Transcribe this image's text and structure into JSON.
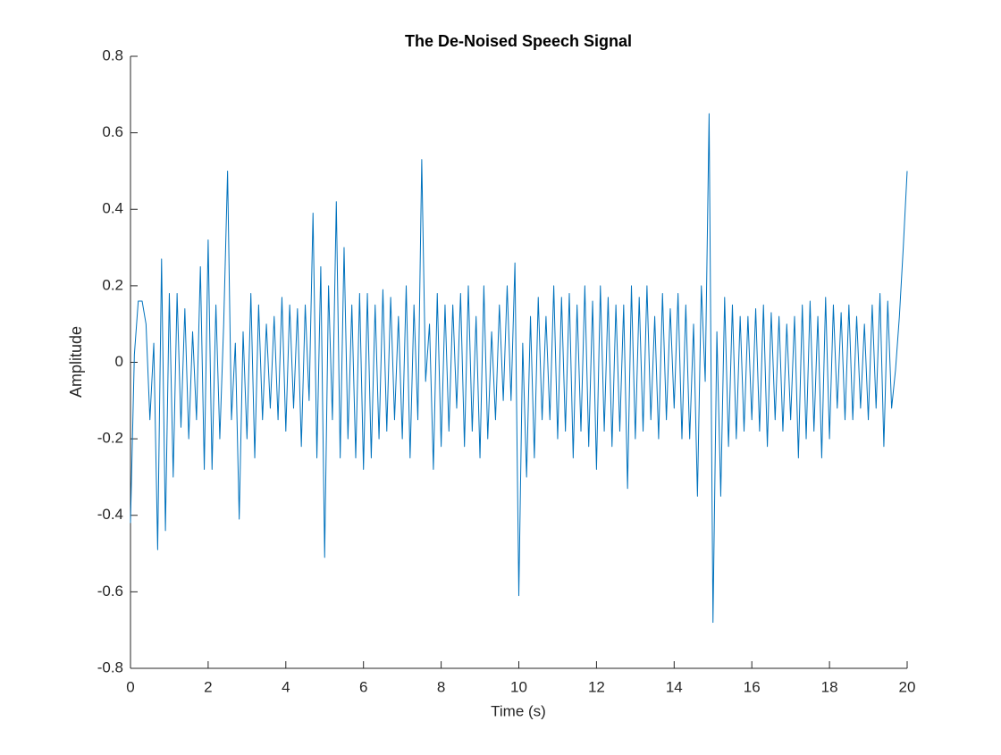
{
  "chart_data": {
    "type": "line",
    "title": "The De-Noised Speech Signal",
    "xlabel": "Time (s)",
    "ylabel": "Amplitude",
    "xlim": [
      0,
      20
    ],
    "ylim": [
      -0.8,
      0.8
    ],
    "xticks": [
      0,
      2,
      4,
      6,
      8,
      10,
      12,
      14,
      16,
      18,
      20
    ],
    "yticks": [
      -0.8,
      -0.6,
      -0.4,
      -0.2,
      0,
      0.2,
      0.4,
      0.6,
      0.8
    ],
    "x": [
      0,
      0.1,
      0.2,
      0.3,
      0.4,
      0.5,
      0.6,
      0.7,
      0.8,
      0.9,
      1,
      1.1,
      1.2,
      1.3,
      1.4,
      1.5,
      1.6,
      1.7,
      1.8,
      1.9,
      2,
      2.1,
      2.2,
      2.3,
      2.4,
      2.5,
      2.6,
      2.7,
      2.8,
      2.9,
      3,
      3.1,
      3.2,
      3.3,
      3.4,
      3.5,
      3.6,
      3.7,
      3.8,
      3.9,
      4,
      4.1,
      4.2,
      4.3,
      4.4,
      4.5,
      4.6,
      4.7,
      4.8,
      4.9,
      5,
      5.1,
      5.2,
      5.3,
      5.4,
      5.5,
      5.6,
      5.7,
      5.8,
      5.9,
      6,
      6.1,
      6.2,
      6.3,
      6.4,
      6.5,
      6.6,
      6.7,
      6.8,
      6.9,
      7,
      7.1,
      7.2,
      7.3,
      7.4,
      7.5,
      7.6,
      7.7,
      7.8,
      7.9,
      8,
      8.1,
      8.2,
      8.3,
      8.4,
      8.5,
      8.6,
      8.7,
      8.8,
      8.9,
      9,
      9.1,
      9.2,
      9.3,
      9.4,
      9.5,
      9.6,
      9.7,
      9.8,
      9.9,
      10,
      10.1,
      10.2,
      10.3,
      10.4,
      10.5,
      10.6,
      10.7,
      10.8,
      10.9,
      11,
      11.1,
      11.2,
      11.3,
      11.4,
      11.5,
      11.6,
      11.7,
      11.8,
      11.9,
      12,
      12.1,
      12.2,
      12.3,
      12.4,
      12.5,
      12.6,
      12.7,
      12.8,
      12.9,
      13,
      13.1,
      13.2,
      13.3,
      13.4,
      13.5,
      13.6,
      13.7,
      13.8,
      13.9,
      14,
      14.1,
      14.2,
      14.3,
      14.4,
      14.5,
      14.6,
      14.7,
      14.8,
      14.9,
      15,
      15.1,
      15.2,
      15.3,
      15.4,
      15.5,
      15.6,
      15.7,
      15.8,
      15.9,
      16,
      16.1,
      16.2,
      16.3,
      16.4,
      16.5,
      16.6,
      16.7,
      16.8,
      16.9,
      17,
      17.1,
      17.2,
      17.3,
      17.4,
      17.5,
      17.6,
      17.7,
      17.8,
      17.9,
      18,
      18.1,
      18.2,
      18.3,
      18.4,
      18.5,
      18.6,
      18.7,
      18.8,
      18.9,
      19,
      19.1,
      19.2,
      19.3,
      19.4,
      19.5,
      19.6,
      19.7,
      19.8,
      19.9,
      20
    ],
    "series": [
      {
        "color": "#0072bd",
        "values": [
          -0.42,
          0.02,
          0.16,
          0.16,
          0.1,
          -0.15,
          0.05,
          -0.49,
          0.27,
          -0.44,
          0.18,
          -0.3,
          0.18,
          -0.17,
          0.14,
          -0.2,
          0.08,
          -0.15,
          0.25,
          -0.28,
          0.32,
          -0.28,
          0.15,
          -0.2,
          0.1,
          0.5,
          -0.15,
          0.05,
          -0.41,
          0.08,
          -0.2,
          0.18,
          -0.25,
          0.15,
          -0.15,
          0.1,
          -0.12,
          0.12,
          -0.15,
          0.17,
          -0.18,
          0.15,
          -0.12,
          0.14,
          -0.22,
          0.15,
          -0.1,
          0.39,
          -0.25,
          0.25,
          -0.51,
          0.2,
          -0.15,
          0.42,
          -0.25,
          0.3,
          -0.2,
          0.15,
          -0.25,
          0.18,
          -0.28,
          0.18,
          -0.25,
          0.15,
          -0.2,
          0.19,
          -0.18,
          0.17,
          -0.15,
          0.12,
          -0.2,
          0.2,
          -0.25,
          0.15,
          -0.15,
          0.53,
          -0.05,
          0.1,
          -0.28,
          0.18,
          -0.22,
          0.15,
          -0.18,
          0.15,
          -0.12,
          0.18,
          -0.22,
          0.2,
          -0.18,
          0.12,
          -0.25,
          0.2,
          -0.2,
          0.08,
          -0.15,
          0.15,
          -0.1,
          0.2,
          -0.1,
          0.26,
          -0.61,
          0.05,
          -0.3,
          0.12,
          -0.25,
          0.17,
          -0.15,
          0.12,
          -0.15,
          0.2,
          -0.2,
          0.17,
          -0.18,
          0.18,
          -0.25,
          0.15,
          -0.18,
          0.2,
          -0.22,
          0.16,
          -0.28,
          0.2,
          -0.18,
          0.17,
          -0.22,
          0.15,
          -0.18,
          0.15,
          -0.33,
          0.2,
          -0.2,
          0.17,
          -0.18,
          0.2,
          -0.15,
          0.12,
          -0.2,
          0.18,
          -0.15,
          0.14,
          -0.12,
          0.18,
          -0.2,
          0.15,
          -0.2,
          0.1,
          -0.35,
          0.2,
          -0.05,
          0.65,
          -0.68,
          0.08,
          -0.35,
          0.17,
          -0.22,
          0.15,
          -0.2,
          0.12,
          -0.18,
          0.12,
          -0.15,
          0.14,
          -0.18,
          0.15,
          -0.22,
          0.13,
          -0.15,
          0.12,
          -0.18,
          0.1,
          -0.15,
          0.12,
          -0.25,
          0.15,
          -0.2,
          0.16,
          -0.18,
          0.12,
          -0.25,
          0.17,
          -0.2,
          0.15,
          -0.12,
          0.13,
          -0.15,
          0.15,
          -0.15,
          0.12,
          -0.12,
          0.1,
          -0.15,
          0.15,
          -0.12,
          0.18,
          -0.22,
          0.16,
          -0.12,
          -0.02,
          0.12,
          0.3,
          0.5
        ]
      }
    ]
  }
}
